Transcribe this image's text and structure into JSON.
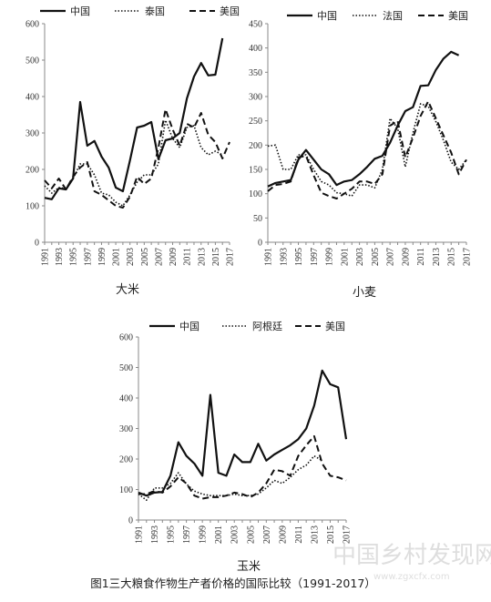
{
  "caption": "图1三大粮食作物生产者价格的国际比较（1991-2017）",
  "watermark": {
    "main": "中国乡村发现网",
    "url": "www.zgxcfx.com"
  },
  "chart_data": [
    {
      "id": "rice",
      "type": "line",
      "title": "大米",
      "ylim": [
        0,
        600
      ],
      "yticks": [
        0,
        100,
        200,
        300,
        400,
        500,
        600
      ],
      "x_tick_labels": [
        "1991",
        "1993",
        "1995",
        "1997",
        "1999",
        "2001",
        "2003",
        "2005",
        "2007",
        "2009",
        "2011",
        "2013",
        "2015",
        "2017"
      ],
      "x": [
        1991,
        1992,
        1993,
        1994,
        1995,
        1996,
        1997,
        1998,
        1999,
        2000,
        2001,
        2002,
        2003,
        2004,
        2005,
        2006,
        2007,
        2008,
        2009,
        2010,
        2011,
        2012,
        2013,
        2014,
        2015,
        2016,
        2017
      ],
      "series": [
        {
          "name": "中国",
          "style": "solid",
          "values": [
            122,
            118,
            148,
            145,
            175,
            385,
            265,
            278,
            235,
            205,
            150,
            140,
            225,
            315,
            320,
            330,
            228,
            280,
            285,
            300,
            395,
            455,
            492,
            458,
            460,
            560,
            null
          ]
        },
        {
          "name": "泰国",
          "style": "dotted",
          "values": [
            155,
            135,
            150,
            148,
            175,
            215,
            215,
            185,
            135,
            130,
            110,
            100,
            130,
            165,
            185,
            185,
            215,
            335,
            285,
            260,
            315,
            320,
            260,
            240,
            250,
            240,
            null
          ]
        },
        {
          "name": "美国",
          "style": "dashed",
          "values": [
            170,
            148,
            175,
            145,
            180,
            205,
            220,
            140,
            130,
            115,
            100,
            95,
            125,
            180,
            160,
            175,
            260,
            365,
            310,
            265,
            325,
            315,
            355,
            295,
            275,
            230,
            275
          ]
        }
      ]
    },
    {
      "id": "wheat",
      "type": "line",
      "title": "小麦",
      "ylim": [
        0,
        450
      ],
      "yticks": [
        0,
        50,
        100,
        150,
        200,
        250,
        300,
        350,
        400,
        450
      ],
      "x_tick_labels": [
        "1991",
        "1993",
        "1995",
        "1997",
        "1999",
        "2001",
        "2003",
        "2005",
        "2007",
        "2009",
        "2011",
        "2013",
        "2015",
        "2017"
      ],
      "x": [
        1991,
        1992,
        1993,
        1994,
        1995,
        1996,
        1997,
        1998,
        1999,
        2000,
        2001,
        2002,
        2003,
        2004,
        2005,
        2006,
        2007,
        2008,
        2009,
        2010,
        2011,
        2012,
        2013,
        2014,
        2015,
        2016,
        2017
      ],
      "series": [
        {
          "name": "中国",
          "style": "solid",
          "values": [
            115,
            122,
            125,
            128,
            170,
            190,
            170,
            150,
            140,
            118,
            125,
            128,
            140,
            155,
            172,
            178,
            205,
            240,
            270,
            278,
            322,
            323,
            355,
            378,
            392,
            385,
            null
          ]
        },
        {
          "name": "法国",
          "style": "dotted",
          "values": [
            198,
            200,
            150,
            150,
            180,
            180,
            150,
            125,
            118,
            102,
            100,
            95,
            118,
            118,
            112,
            150,
            255,
            235,
            155,
            225,
            285,
            280,
            248,
            210,
            165,
            150,
            170
          ]
        },
        {
          "name": "美国",
          "style": "dashed",
          "values": [
            105,
            118,
            120,
            125,
            175,
            178,
            138,
            102,
            95,
            90,
            100,
            110,
            125,
            125,
            120,
            140,
            240,
            250,
            175,
            215,
            260,
            290,
            255,
            220,
            185,
            140,
            170
          ]
        }
      ]
    },
    {
      "id": "corn",
      "type": "line",
      "title": "玉米",
      "ylim": [
        0,
        600
      ],
      "yticks": [
        0,
        100,
        200,
        300,
        400,
        500,
        600
      ],
      "x_tick_labels": [
        "1991",
        "1993",
        "1995",
        "1997",
        "1999",
        "2001",
        "2003",
        "2005",
        "2007",
        "2009",
        "2011",
        "2013",
        "2015",
        "2017"
      ],
      "x": [
        1991,
        1992,
        1993,
        1994,
        1995,
        1996,
        1997,
        1998,
        1999,
        2000,
        2001,
        2002,
        2003,
        2004,
        2005,
        2006,
        2007,
        2008,
        2009,
        2010,
        2011,
        2012,
        2013,
        2014,
        2015,
        2016,
        2017
      ],
      "series": [
        {
          "name": "中国",
          "style": "solid",
          "values": [
            90,
            80,
            90,
            92,
            145,
            255,
            210,
            185,
            145,
            410,
            155,
            145,
            215,
            190,
            190,
            250,
            195,
            215,
            230,
            245,
            265,
            300,
            375,
            490,
            445,
            435,
            265
          ]
        },
        {
          "name": "阿根廷",
          "style": "dotted",
          "values": [
            85,
            65,
            105,
            105,
            120,
            155,
            118,
            95,
            85,
            80,
            80,
            80,
            85,
            80,
            80,
            85,
            105,
            130,
            120,
            140,
            165,
            180,
            210,
            195,
            null,
            null,
            null
          ]
        },
        {
          "name": "美国",
          "style": "dashed",
          "values": [
            85,
            85,
            95,
            90,
            110,
            140,
            120,
            80,
            70,
            75,
            75,
            80,
            90,
            85,
            75,
            90,
            120,
            165,
            160,
            145,
            210,
            245,
            275,
            185,
            145,
            140,
            130
          ]
        }
      ]
    }
  ]
}
